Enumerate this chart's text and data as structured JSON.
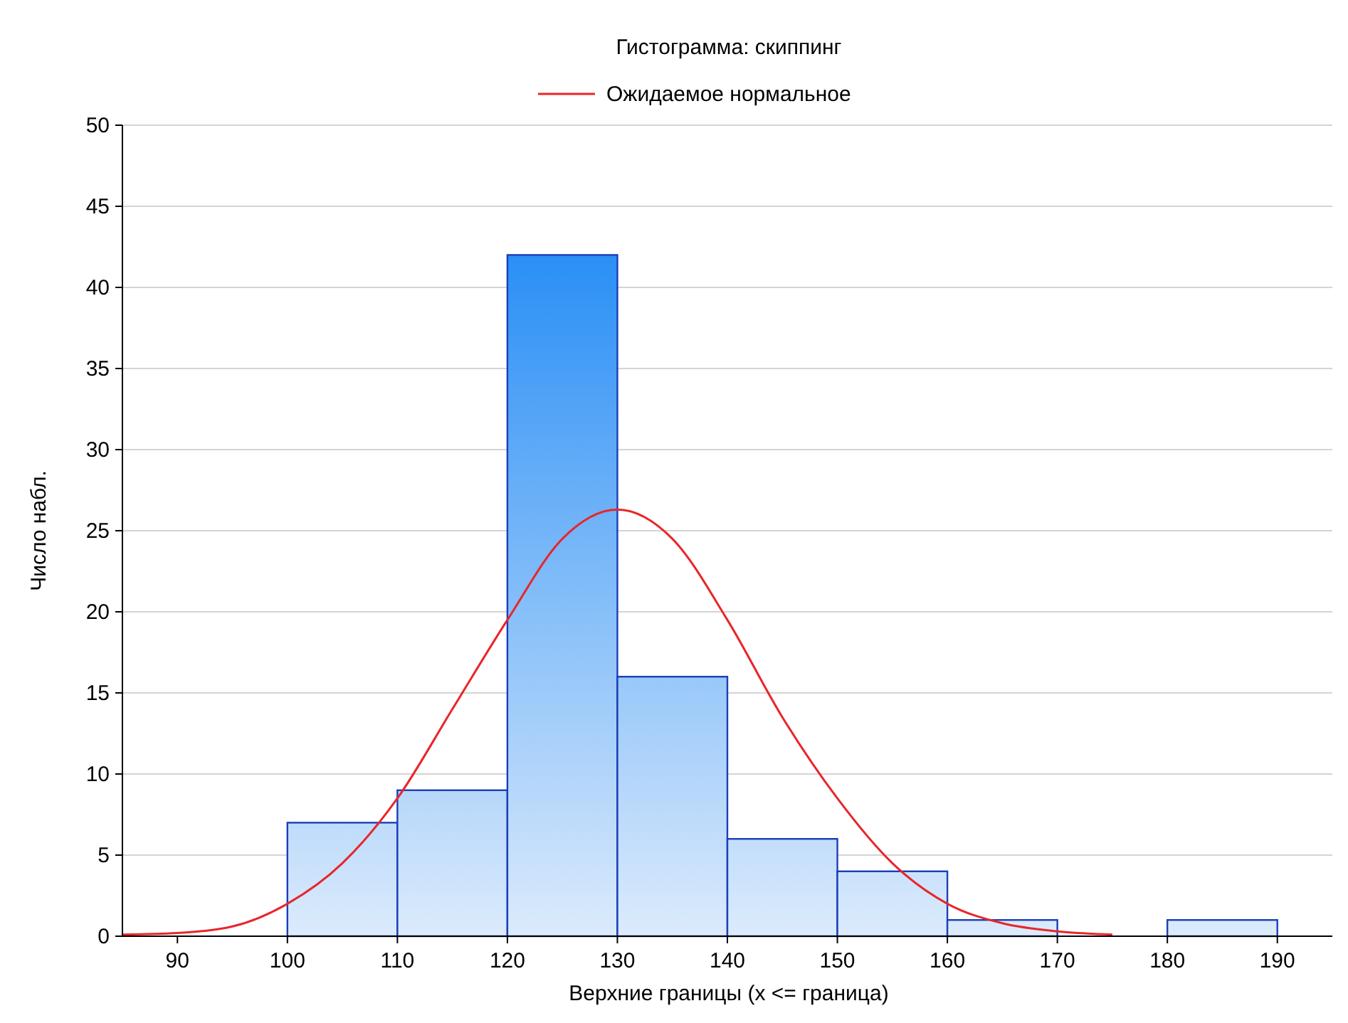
{
  "chart_data": {
    "type": "histogram",
    "title": "Гистограмма: скиппинг",
    "xlabel": "Верхние границы (x <= граница)",
    "ylabel": "Число набл.",
    "bins": [
      100,
      110,
      120,
      130,
      140,
      150,
      160,
      170,
      180,
      190
    ],
    "values": [
      7,
      9,
      42,
      16,
      6,
      4,
      1,
      0,
      1
    ],
    "color": "#1a3fb8",
    "series": [
      {
        "type": "line",
        "name": "Ожидаемое нормальное",
        "color": "#e8262b",
        "x": [
          85,
          90,
          95,
          100,
          105,
          110,
          115,
          120,
          125,
          130,
          135,
          140,
          145,
          150,
          155,
          160,
          165,
          170,
          175
        ],
        "values": [
          0.1,
          0.2,
          0.6,
          2,
          4.5,
          8.5,
          14,
          19.5,
          24.5,
          26.3,
          24.5,
          19.5,
          13.5,
          8.5,
          4.5,
          2,
          0.8,
          0.3,
          0.1
        ]
      }
    ],
    "xlim": [
      85,
      195
    ],
    "xticks": [
      90,
      100,
      110,
      120,
      130,
      140,
      150,
      160,
      170,
      180,
      190
    ],
    "ylim": [
      0,
      50
    ],
    "yticks": [
      0,
      5,
      10,
      15,
      20,
      25,
      30,
      35,
      40,
      45,
      50
    ],
    "grid": "y",
    "legend": "top",
    "line_style": "solid"
  }
}
